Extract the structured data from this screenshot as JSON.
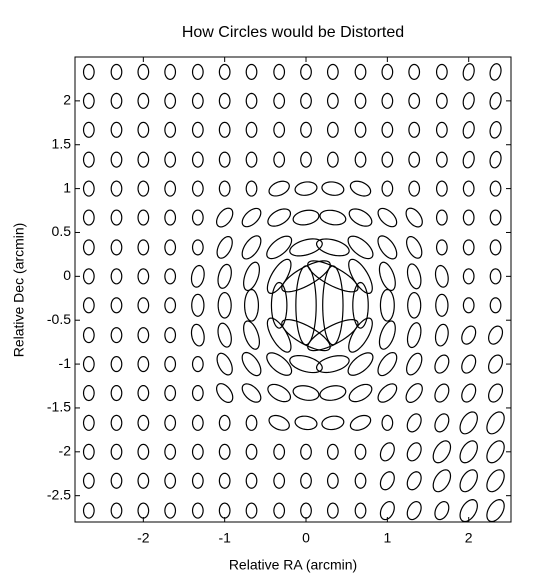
{
  "chart_data": {
    "type": "ellipse-field",
    "title": "How Circles would be Distorted",
    "x_label": "Relative RA (arcmin)",
    "y_label": "Relative Dec (arcmin)",
    "xlim": [
      -2.84,
      2.52
    ],
    "ylim": [
      -2.8,
      2.5
    ],
    "xticks": [
      -2,
      -1,
      0,
      1,
      2
    ],
    "yticks": [
      -2.5,
      -2,
      -1.5,
      -1,
      -0.5,
      0,
      0.5,
      1,
      1.5,
      2
    ],
    "color": "#000000",
    "x": [
      -2.67,
      -2.33,
      -2,
      -1.67,
      -1.33,
      -1,
      -0.67,
      -0.33,
      0,
      0.33,
      0.67,
      1,
      1.33,
      1.67,
      2,
      2.33
    ],
    "y": [
      2.33,
      2,
      1.67,
      1.33,
      1,
      0.67,
      0.33,
      0,
      -0.33,
      -0.67,
      -1,
      -1.33,
      -1.67,
      -2,
      -2.33,
      -2.67
    ],
    "ellipses": [
      [
        [
          0.17,
          0.13,
          90
        ],
        [
          0.17,
          0.13,
          90
        ],
        [
          0.17,
          0.13,
          90
        ],
        [
          0.17,
          0.13,
          90
        ],
        [
          0.17,
          0.13,
          90
        ],
        [
          0.17,
          0.13,
          90
        ],
        [
          0.17,
          0.13,
          90
        ],
        [
          0.17,
          0.13,
          90
        ],
        [
          0.17,
          0.13,
          90
        ],
        [
          0.17,
          0.13,
          90
        ],
        [
          0.17,
          0.13,
          90
        ],
        [
          0.17,
          0.13,
          90
        ],
        [
          0.17,
          0.13,
          90
        ],
        [
          0.17,
          0.13,
          90
        ],
        [
          0.19,
          0.13,
          75
        ],
        [
          0.19,
          0.13,
          75
        ]
      ],
      [
        [
          0.17,
          0.13,
          90
        ],
        [
          0.17,
          0.13,
          90
        ],
        [
          0.17,
          0.13,
          90
        ],
        [
          0.17,
          0.13,
          90
        ],
        [
          0.17,
          0.13,
          90
        ],
        [
          0.17,
          0.13,
          90
        ],
        [
          0.17,
          0.13,
          90
        ],
        [
          0.17,
          0.13,
          90
        ],
        [
          0.17,
          0.13,
          90
        ],
        [
          0.17,
          0.13,
          90
        ],
        [
          0.17,
          0.13,
          90
        ],
        [
          0.17,
          0.13,
          90
        ],
        [
          0.17,
          0.13,
          90
        ],
        [
          0.17,
          0.13,
          90
        ],
        [
          0.19,
          0.13,
          75
        ],
        [
          0.19,
          0.13,
          75
        ]
      ],
      [
        [
          0.17,
          0.13,
          90
        ],
        [
          0.17,
          0.13,
          90
        ],
        [
          0.17,
          0.13,
          90
        ],
        [
          0.17,
          0.13,
          90
        ],
        [
          0.17,
          0.13,
          90
        ],
        [
          0.17,
          0.13,
          90
        ],
        [
          0.17,
          0.13,
          90
        ],
        [
          0.17,
          0.13,
          90
        ],
        [
          0.17,
          0.13,
          90
        ],
        [
          0.17,
          0.13,
          90
        ],
        [
          0.17,
          0.13,
          90
        ],
        [
          0.17,
          0.13,
          90
        ],
        [
          0.17,
          0.13,
          90
        ],
        [
          0.17,
          0.13,
          90
        ],
        [
          0.19,
          0.13,
          75
        ],
        [
          0.19,
          0.13,
          75
        ]
      ],
      [
        [
          0.17,
          0.13,
          90
        ],
        [
          0.17,
          0.13,
          90
        ],
        [
          0.17,
          0.13,
          90
        ],
        [
          0.17,
          0.13,
          90
        ],
        [
          0.17,
          0.13,
          90
        ],
        [
          0.17,
          0.13,
          90
        ],
        [
          0.17,
          0.13,
          90
        ],
        [
          0.17,
          0.13,
          90
        ],
        [
          0.17,
          0.13,
          90
        ],
        [
          0.17,
          0.13,
          90
        ],
        [
          0.17,
          0.13,
          90
        ],
        [
          0.17,
          0.13,
          90
        ],
        [
          0.17,
          0.13,
          90
        ],
        [
          0.17,
          0.13,
          90
        ],
        [
          0.19,
          0.13,
          75
        ],
        [
          0.19,
          0.13,
          75
        ]
      ],
      [
        [
          0.17,
          0.13,
          90
        ],
        [
          0.17,
          0.13,
          90
        ],
        [
          0.17,
          0.13,
          90
        ],
        [
          0.17,
          0.13,
          90
        ],
        [
          0.17,
          0.13,
          90
        ],
        [
          0.17,
          0.13,
          90
        ],
        [
          0.17,
          0.13,
          90
        ],
        [
          0.26,
          0.15,
          20.6
        ],
        [
          0.27,
          0.15,
          7
        ],
        [
          0.27,
          0.15,
          173
        ],
        [
          0.26,
          0.15,
          159
        ],
        [
          0.17,
          0.13,
          90
        ],
        [
          0.17,
          0.13,
          90
        ],
        [
          0.17,
          0.13,
          90
        ],
        [
          0.17,
          0.13,
          90
        ],
        [
          0.17,
          0.13,
          90
        ]
      ],
      [
        [
          0.17,
          0.13,
          90
        ],
        [
          0.17,
          0.13,
          90
        ],
        [
          0.17,
          0.13,
          90
        ],
        [
          0.17,
          0.13,
          90
        ],
        [
          0.17,
          0.13,
          90
        ],
        [
          0.25,
          0.15,
          49.5
        ],
        [
          0.27,
          0.15,
          40
        ],
        [
          0.3,
          0.16,
          26.6
        ],
        [
          0.32,
          0.16,
          9.6
        ],
        [
          0.32,
          0.16,
          171
        ],
        [
          0.3,
          0.16,
          153.4
        ],
        [
          0.27,
          0.15,
          140
        ],
        [
          0.25,
          0.15,
          130.8
        ],
        [
          0.17,
          0.13,
          90
        ],
        [
          0.17,
          0.13,
          90
        ],
        [
          0.17,
          0.13,
          90
        ]
      ],
      [
        [
          0.17,
          0.13,
          90
        ],
        [
          0.17,
          0.13,
          90
        ],
        [
          0.17,
          0.13,
          90
        ],
        [
          0.17,
          0.13,
          90
        ],
        [
          0.17,
          0.13,
          90
        ],
        [
          0.27,
          0.15,
          60.6
        ],
        [
          0.31,
          0.16,
          51.8
        ],
        [
          0.36,
          0.17,
          37
        ],
        [
          0.41,
          0.17,
          14.4
        ],
        [
          0.41,
          0.17,
          166.4
        ],
        [
          0.36,
          0.17,
          143
        ],
        [
          0.31,
          0.16,
          128.5
        ],
        [
          0.27,
          0.15,
          119.6
        ],
        [
          0.17,
          0.13,
          90
        ],
        [
          0.17,
          0.13,
          90
        ],
        [
          0.17,
          0.13,
          90
        ]
      ],
      [
        [
          0.17,
          0.13,
          90
        ],
        [
          0.17,
          0.13,
          90
        ],
        [
          0.17,
          0.13,
          90
        ],
        [
          0.17,
          0.13,
          90
        ],
        [
          0.25,
          0.15,
          77.6
        ],
        [
          0.28,
          0.15,
          74
        ],
        [
          0.34,
          0.16,
          68.6
        ],
        [
          0.45,
          0.18,
          56.6
        ],
        [
          0.66,
          0.21,
          27
        ],
        [
          0.68,
          0.21,
          154
        ],
        [
          0.45,
          0.18,
          123.4
        ],
        [
          0.34,
          0.16,
          111.7
        ],
        [
          0.29,
          0.15,
          105.9
        ],
        [
          0.25,
          0.15,
          102.4
        ],
        [
          0.17,
          0.13,
          90
        ],
        [
          0.17,
          0.13,
          90
        ]
      ],
      [
        [
          0.17,
          0.13,
          90
        ],
        [
          0.17,
          0.13,
          90
        ],
        [
          0.17,
          0.13,
          90
        ],
        [
          0.17,
          0.13,
          90
        ],
        [
          0.25,
          0.15,
          90
        ],
        [
          0.29,
          0.16,
          90
        ],
        [
          0.36,
          0.17,
          90
        ],
        [
          0.52,
          0.19,
          90
        ],
        [
          0.9,
          0.25,
          90
        ],
        [
          0.9,
          0.25,
          90
        ],
        [
          0.52,
          0.19,
          90
        ],
        [
          0.36,
          0.17,
          90
        ],
        [
          0.29,
          0.16,
          90
        ],
        [
          0.25,
          0.15,
          90
        ],
        [
          0.17,
          0.13,
          90
        ],
        [
          0.17,
          0.13,
          90
        ]
      ],
      [
        [
          0.17,
          0.13,
          90
        ],
        [
          0.17,
          0.13,
          90
        ],
        [
          0.17,
          0.13,
          90
        ],
        [
          0.17,
          0.13,
          90
        ],
        [
          0.25,
          0.15,
          102.4
        ],
        [
          0.28,
          0.15,
          106
        ],
        [
          0.34,
          0.16,
          111.4
        ],
        [
          0.45,
          0.18,
          123.4
        ],
        [
          0.66,
          0.21,
          153
        ],
        [
          0.68,
          0.21,
          26
        ],
        [
          0.45,
          0.18,
          56.6
        ],
        [
          0.34,
          0.16,
          68.3
        ],
        [
          0.29,
          0.15,
          74.1
        ],
        [
          0.25,
          0.15,
          77.6
        ],
        [
          0.22,
          0.15,
          60
        ],
        [
          0.22,
          0.15,
          60
        ]
      ],
      [
        [
          0.17,
          0.13,
          90
        ],
        [
          0.17,
          0.13,
          90
        ],
        [
          0.17,
          0.13,
          90
        ],
        [
          0.17,
          0.13,
          90
        ],
        [
          0.17,
          0.13,
          90
        ],
        [
          0.27,
          0.15,
          119.4
        ],
        [
          0.31,
          0.16,
          128.2
        ],
        [
          0.36,
          0.17,
          143
        ],
        [
          0.41,
          0.17,
          165.6
        ],
        [
          0.41,
          0.17,
          13.6
        ],
        [
          0.36,
          0.17,
          37
        ],
        [
          0.31,
          0.16,
          51.5
        ],
        [
          0.27,
          0.15,
          60.4
        ],
        [
          0.22,
          0.15,
          60
        ],
        [
          0.22,
          0.15,
          60
        ],
        [
          0.22,
          0.15,
          60
        ]
      ],
      [
        [
          0.17,
          0.13,
          90
        ],
        [
          0.17,
          0.13,
          90
        ],
        [
          0.17,
          0.13,
          90
        ],
        [
          0.17,
          0.13,
          90
        ],
        [
          0.17,
          0.13,
          90
        ],
        [
          0.25,
          0.15,
          130.5
        ],
        [
          0.27,
          0.15,
          140
        ],
        [
          0.3,
          0.16,
          153.4
        ],
        [
          0.32,
          0.16,
          170.4
        ],
        [
          0.32,
          0.16,
          9
        ],
        [
          0.3,
          0.16,
          26.6
        ],
        [
          0.27,
          0.15,
          40
        ],
        [
          0.25,
          0.15,
          49.2
        ],
        [
          0.22,
          0.15,
          60
        ],
        [
          0.22,
          0.15,
          60
        ],
        [
          0.22,
          0.15,
          60
        ]
      ],
      [
        [
          0.17,
          0.13,
          90
        ],
        [
          0.17,
          0.13,
          90
        ],
        [
          0.17,
          0.13,
          90
        ],
        [
          0.17,
          0.13,
          90
        ],
        [
          0.17,
          0.13,
          90
        ],
        [
          0.17,
          0.13,
          90
        ],
        [
          0.17,
          0.13,
          90
        ],
        [
          0.26,
          0.15,
          159.4
        ],
        [
          0.27,
          0.15,
          173
        ],
        [
          0.27,
          0.15,
          7
        ],
        [
          0.26,
          0.15,
          21
        ],
        [
          0.17,
          0.13,
          90
        ],
        [
          0.22,
          0.15,
          60
        ],
        [
          0.22,
          0.15,
          60
        ],
        [
          0.28,
          0.17,
          55
        ],
        [
          0.28,
          0.17,
          55
        ]
      ],
      [
        [
          0.17,
          0.13,
          90
        ],
        [
          0.17,
          0.13,
          90
        ],
        [
          0.17,
          0.13,
          90
        ],
        [
          0.17,
          0.13,
          90
        ],
        [
          0.17,
          0.13,
          90
        ],
        [
          0.17,
          0.13,
          90
        ],
        [
          0.17,
          0.13,
          90
        ],
        [
          0.17,
          0.13,
          90
        ],
        [
          0.17,
          0.13,
          90
        ],
        [
          0.17,
          0.13,
          90
        ],
        [
          0.17,
          0.13,
          90
        ],
        [
          0.22,
          0.15,
          60
        ],
        [
          0.22,
          0.15,
          60
        ],
        [
          0.28,
          0.17,
          55
        ],
        [
          0.28,
          0.17,
          55
        ],
        [
          0.28,
          0.17,
          55
        ]
      ],
      [
        [
          0.17,
          0.13,
          90
        ],
        [
          0.17,
          0.13,
          90
        ],
        [
          0.17,
          0.13,
          90
        ],
        [
          0.17,
          0.13,
          90
        ],
        [
          0.17,
          0.13,
          90
        ],
        [
          0.17,
          0.13,
          90
        ],
        [
          0.17,
          0.13,
          90
        ],
        [
          0.17,
          0.13,
          90
        ],
        [
          0.17,
          0.13,
          90
        ],
        [
          0.17,
          0.13,
          90
        ],
        [
          0.17,
          0.13,
          90
        ],
        [
          0.22,
          0.15,
          60
        ],
        [
          0.22,
          0.15,
          60
        ],
        [
          0.28,
          0.17,
          55
        ],
        [
          0.28,
          0.17,
          55
        ],
        [
          0.28,
          0.17,
          55
        ]
      ],
      [
        [
          0.17,
          0.13,
          90
        ],
        [
          0.17,
          0.13,
          90
        ],
        [
          0.17,
          0.13,
          90
        ],
        [
          0.17,
          0.13,
          90
        ],
        [
          0.17,
          0.13,
          90
        ],
        [
          0.17,
          0.13,
          90
        ],
        [
          0.17,
          0.13,
          90
        ],
        [
          0.17,
          0.13,
          90
        ],
        [
          0.17,
          0.13,
          90
        ],
        [
          0.17,
          0.13,
          90
        ],
        [
          0.17,
          0.13,
          90
        ],
        [
          0.22,
          0.15,
          60
        ],
        [
          0.22,
          0.15,
          60
        ],
        [
          0.22,
          0.15,
          60
        ],
        [
          0.28,
          0.17,
          55
        ],
        [
          0.28,
          0.17,
          55
        ]
      ]
    ]
  }
}
